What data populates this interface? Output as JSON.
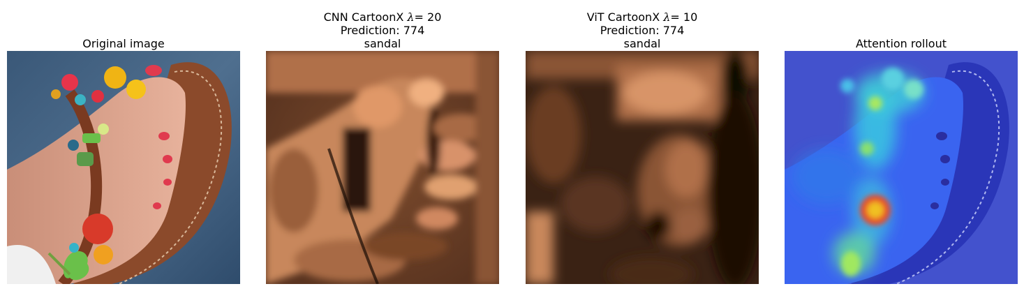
{
  "panels": [
    {
      "title_lines": [
        "Original image"
      ]
    },
    {
      "title_prefix": "CNN CartoonX ",
      "lambda_symbol": "λ",
      "lambda_value": "= 20",
      "title_lines": [
        "Prediction: 774",
        "sandal"
      ]
    },
    {
      "title_prefix": "ViT CartoonX ",
      "lambda_symbol": "λ",
      "lambda_value": "= 10",
      "title_lines": [
        "Prediction: 774",
        "sandal"
      ]
    },
    {
      "title_lines": [
        "Attention rollout"
      ]
    }
  ],
  "colors": {
    "copper_light": "#e8a57a",
    "copper_dark": "#1a0d06",
    "sandal_brown": "#8b4a2b",
    "skin": "#d9a088",
    "background_blue": "#3f5f7f",
    "heatmap_blue": "#2a4bd8"
  }
}
